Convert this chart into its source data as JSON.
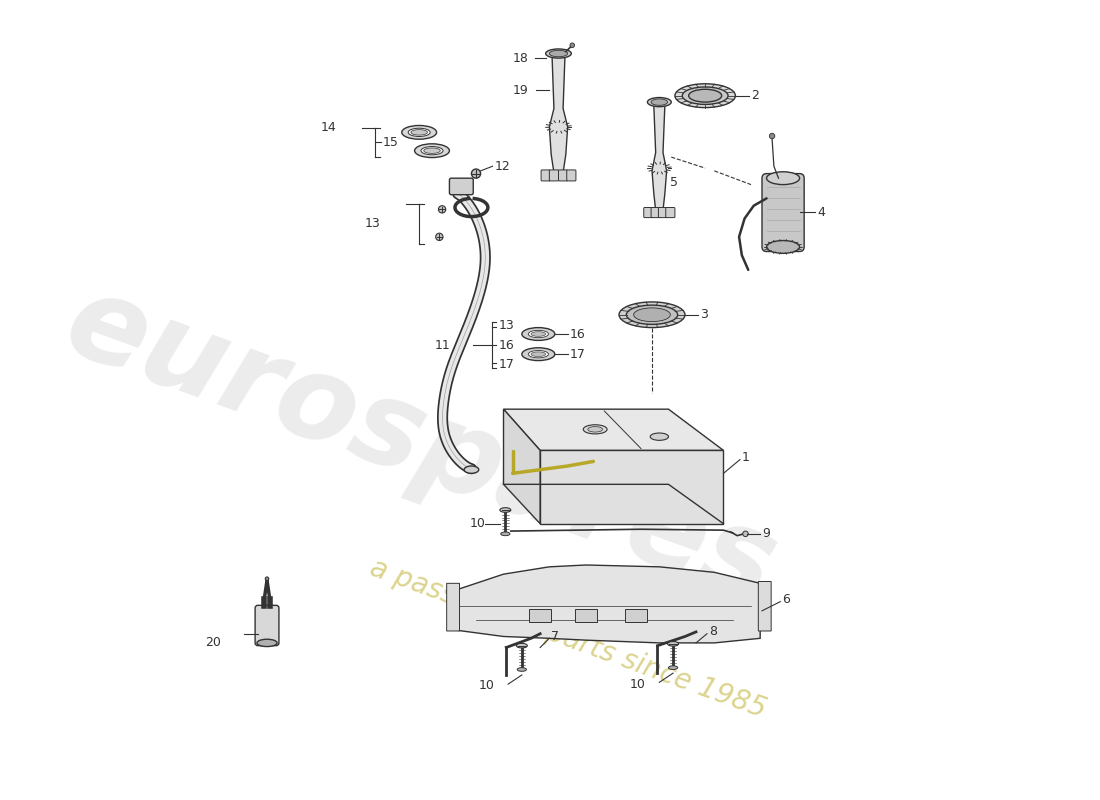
{
  "background_color": "#ffffff",
  "line_color": "#333333",
  "label_color": "#222222",
  "wm1": "eurospares",
  "wm2": "a passion for parts since 1985",
  "wm1_color": "#bbbbbb",
  "wm2_color": "#c8bc50",
  "figsize": [
    11.0,
    8.0
  ],
  "dpi": 100
}
